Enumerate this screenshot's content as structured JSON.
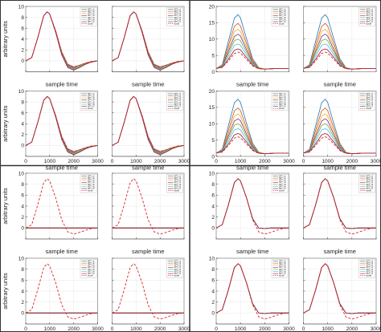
{
  "figure": {
    "divider_color": "#333333",
    "background": "#ffffff"
  },
  "series_colors": [
    "#1f77b4",
    "#d95319",
    "#edb120",
    "#7e2f8e",
    "#77ac30",
    "#4dbeee",
    "#a2142f",
    "#2b2b2b"
  ],
  "actual_color": "#d62728",
  "chart_data": [
    {
      "type": "line",
      "panel": "top-left",
      "xlabel": "sample time",
      "ylabel": "arbitrary units",
      "xlim": [
        0,
        3000
      ],
      "ylim": [
        -2,
        10
      ],
      "xticks": [
        0,
        1000,
        2000,
        3000
      ],
      "yticks": [
        0,
        2,
        4,
        6,
        8,
        10
      ],
      "subplots": 4,
      "grid": true,
      "legend": {
        "placement": "top-right",
        "entries": [
          "SPT_n1",
          "SPT_n2",
          "SPT_n3",
          "SPT_n4",
          "SPT_n5",
          "SPT_n6",
          "SPT_n7",
          "actual"
        ]
      },
      "x": [
        0,
        250,
        500,
        750,
        900,
        1000,
        1250,
        1500,
        1750,
        2000,
        2250,
        2500,
        2750,
        3000
      ],
      "series": [
        {
          "name": "SPT_n1",
          "values": [
            0,
            0.6,
            4.2,
            8.3,
            9.0,
            8.6,
            5.5,
            1.7,
            -0.6,
            -1.1,
            -0.8,
            -0.4,
            -0.1,
            0
          ]
        },
        {
          "name": "SPT_n2",
          "values": [
            0,
            0.6,
            4.2,
            8.3,
            9.0,
            8.6,
            5.5,
            1.6,
            -0.7,
            -1.2,
            -0.9,
            -0.4,
            -0.1,
            0
          ]
        },
        {
          "name": "SPT_n3",
          "values": [
            0,
            0.6,
            4.2,
            8.3,
            9.0,
            8.6,
            5.4,
            1.5,
            -0.8,
            -1.3,
            -0.9,
            -0.5,
            -0.1,
            0
          ]
        },
        {
          "name": "SPT_n4",
          "values": [
            0,
            0.6,
            4.2,
            8.3,
            9.0,
            8.6,
            5.4,
            1.4,
            -0.9,
            -1.4,
            -1.0,
            -0.5,
            -0.2,
            0
          ]
        },
        {
          "name": "SPT_n5",
          "values": [
            0,
            0.6,
            4.2,
            8.3,
            9.0,
            8.6,
            5.3,
            1.3,
            -1.0,
            -1.5,
            -1.0,
            -0.5,
            -0.2,
            0
          ]
        },
        {
          "name": "SPT_n6",
          "values": [
            0,
            0.6,
            4.2,
            8.3,
            9.0,
            8.6,
            5.3,
            1.2,
            -1.1,
            -1.6,
            -1.1,
            -0.6,
            -0.2,
            0
          ]
        },
        {
          "name": "SPT_n7",
          "values": [
            0,
            0.6,
            4.2,
            8.3,
            9.0,
            8.6,
            5.2,
            1.1,
            -1.2,
            -1.7,
            -1.2,
            -0.6,
            -0.2,
            0
          ]
        },
        {
          "name": "actual",
          "dashed": true,
          "values": [
            0,
            0.6,
            4.2,
            8.3,
            9.0,
            8.6,
            5.5,
            1.5,
            -0.7,
            -1.1,
            -0.8,
            -0.4,
            -0.1,
            0
          ]
        }
      ]
    },
    {
      "type": "line",
      "panel": "top-right",
      "xlabel": "sample time",
      "ylabel": "",
      "xlim": [
        0,
        3000
      ],
      "ylim": [
        0,
        20
      ],
      "xticks": [
        0,
        1000,
        2000,
        3000
      ],
      "yticks": [
        0,
        5,
        10,
        15,
        20
      ],
      "subplots": 4,
      "grid": true,
      "legend": {
        "placement": "top-right",
        "entries": [
          "SPT_n1",
          "SPT_n2",
          "SPT_n3",
          "SPT_n4",
          "SPT_n5",
          "SPT_n6",
          "SPT_n7",
          "actual"
        ]
      },
      "x": [
        0,
        250,
        500,
        750,
        900,
        1000,
        1250,
        1500,
        1750,
        2000,
        2250,
        2500,
        2750,
        3000
      ],
      "series": [
        {
          "name": "SPT_n1",
          "values": [
            1.0,
            2.1,
            9.3,
            16.4,
            17.5,
            16.5,
            10.1,
            4.0,
            1.3,
            0.8,
            0.9,
            1.0,
            1.0,
            1.0
          ]
        },
        {
          "name": "SPT_n2",
          "values": [
            1.0,
            1.9,
            7.9,
            13.9,
            14.8,
            14.0,
            8.7,
            3.5,
            1.2,
            0.8,
            0.9,
            1.0,
            1.0,
            1.0
          ]
        },
        {
          "name": "SPT_n3",
          "values": [
            1.0,
            1.8,
            7.0,
            12.3,
            13.0,
            12.3,
            7.7,
            3.2,
            1.2,
            0.8,
            0.9,
            1.0,
            1.0,
            1.0
          ]
        },
        {
          "name": "SPT_n4",
          "values": [
            1.0,
            1.7,
            6.2,
            10.8,
            11.5,
            10.9,
            6.8,
            2.9,
            1.1,
            0.8,
            0.9,
            1.0,
            1.0,
            1.0
          ]
        },
        {
          "name": "SPT_n5",
          "values": [
            1.0,
            1.6,
            5.4,
            9.5,
            10.0,
            9.5,
            6.0,
            2.6,
            1.1,
            0.8,
            0.9,
            1.0,
            1.0,
            1.0
          ]
        },
        {
          "name": "SPT_n6",
          "values": [
            1.0,
            1.5,
            4.6,
            8.1,
            8.5,
            8.1,
            5.2,
            2.3,
            1.0,
            0.8,
            0.9,
            1.0,
            1.0,
            1.0
          ]
        },
        {
          "name": "SPT_n7",
          "values": [
            1.0,
            1.4,
            3.8,
            6.6,
            7.0,
            6.7,
            4.4,
            2.0,
            1.0,
            0.8,
            0.9,
            1.0,
            1.0,
            1.0
          ]
        },
        {
          "name": "actual",
          "dashed": true,
          "values": [
            1.0,
            1.3,
            3.3,
            5.6,
            6.0,
            5.7,
            3.8,
            1.8,
            0.9,
            0.8,
            0.9,
            1.0,
            1.0,
            1.0
          ]
        }
      ]
    },
    {
      "type": "line",
      "panel": "bottom-left",
      "xlabel": "sample time",
      "ylabel": "arbitrary units",
      "xlim": [
        0,
        3000
      ],
      "ylim": [
        -2,
        10
      ],
      "xticks": [
        0,
        1000,
        2000,
        3000
      ],
      "yticks": [
        0,
        2,
        4,
        6,
        8,
        10
      ],
      "subplots": 4,
      "grid": true,
      "legend": {
        "placement": "top-right",
        "entries": [
          "SPT_n1",
          "SPT_n2",
          "SPT_n3",
          "SPT_n4",
          "SPT_n5",
          "SPT_n6",
          "SPT_n7",
          "actual"
        ]
      },
      "x": [
        0,
        250,
        500,
        750,
        900,
        1000,
        1250,
        1500,
        1750,
        2000,
        2250,
        2500,
        2750,
        3000
      ],
      "series": [
        {
          "name": "SPT_n1",
          "values": [
            0,
            0,
            0,
            0,
            0,
            0,
            0,
            0,
            0,
            0,
            0,
            0,
            0,
            0
          ]
        },
        {
          "name": "SPT_n2",
          "values": [
            0,
            0,
            0,
            0,
            0,
            0,
            0,
            0,
            0,
            0,
            0,
            0,
            0,
            0
          ]
        },
        {
          "name": "SPT_n3",
          "values": [
            0,
            0,
            0,
            0,
            0,
            0,
            0,
            0,
            0,
            0,
            0,
            0,
            0,
            0
          ]
        },
        {
          "name": "SPT_n4",
          "values": [
            0,
            0,
            0,
            0,
            0,
            0,
            0,
            0,
            0,
            0,
            0,
            0,
            0,
            0
          ]
        },
        {
          "name": "SPT_n5",
          "values": [
            0,
            0,
            0,
            0,
            0,
            0,
            0,
            0,
            0,
            0,
            0,
            0,
            0,
            0
          ]
        },
        {
          "name": "SPT_n6",
          "values": [
            0,
            0,
            0,
            0,
            0,
            0,
            0,
            0,
            0,
            0,
            0,
            0,
            0,
            0
          ]
        },
        {
          "name": "SPT_n7",
          "values": [
            0,
            0,
            0,
            0,
            0,
            0,
            0,
            0,
            0,
            0,
            0,
            0,
            0,
            0
          ]
        },
        {
          "name": "actual",
          "dashed": true,
          "values": [
            0,
            0.6,
            4.2,
            8.3,
            9.0,
            8.6,
            5.5,
            1.5,
            -0.7,
            -1.1,
            -0.8,
            -0.4,
            -0.1,
            0
          ]
        }
      ]
    },
    {
      "type": "line",
      "panel": "bottom-right",
      "xlabel": "sample time",
      "ylabel": "",
      "xlim": [
        0,
        3000
      ],
      "ylim": [
        -2,
        10
      ],
      "xticks": [
        0,
        1000,
        2000,
        3000
      ],
      "yticks": [
        0,
        2,
        4,
        6,
        8,
        10
      ],
      "subplots": 4,
      "grid": true,
      "legend": {
        "placement": "top-right",
        "entries": [
          "SPT_n1",
          "SPT_n2",
          "SPT_n3",
          "SPT_n4",
          "SPT_n5",
          "SPT_n6",
          "SPT_n7",
          "actual"
        ]
      },
      "x": [
        0,
        250,
        500,
        750,
        900,
        1000,
        1250,
        1500,
        1750,
        2000,
        2250,
        2500,
        2750,
        3000
      ],
      "series": [
        {
          "name": "SPT_n1",
          "values": [
            0,
            0.6,
            4.2,
            8.3,
            9.0,
            8.6,
            5.5,
            1.7,
            0.0,
            -0.1,
            0,
            0,
            0,
            0
          ]
        },
        {
          "name": "SPT_n2",
          "values": [
            0,
            0.6,
            4.2,
            8.3,
            9.0,
            8.6,
            5.5,
            1.7,
            0.0,
            -0.1,
            0,
            0,
            0,
            0
          ]
        },
        {
          "name": "SPT_n3",
          "values": [
            0,
            0.6,
            4.2,
            8.3,
            9.0,
            8.6,
            5.5,
            1.7,
            0.0,
            -0.1,
            0,
            0,
            0,
            0
          ]
        },
        {
          "name": "SPT_n4",
          "values": [
            0,
            0.6,
            4.2,
            8.3,
            9.0,
            8.6,
            5.5,
            1.7,
            0.0,
            -0.1,
            0,
            0,
            0,
            0
          ]
        },
        {
          "name": "SPT_n5",
          "values": [
            0,
            0.6,
            4.2,
            8.3,
            9.0,
            8.6,
            5.5,
            1.7,
            0.0,
            -0.1,
            0,
            0,
            0,
            0
          ]
        },
        {
          "name": "SPT_n6",
          "values": [
            0,
            0.6,
            4.2,
            8.3,
            9.0,
            8.6,
            5.5,
            1.7,
            0.0,
            -0.1,
            0,
            0,
            0,
            0
          ]
        },
        {
          "name": "SPT_n7",
          "values": [
            0,
            0.6,
            4.2,
            8.3,
            9.0,
            8.6,
            5.5,
            1.7,
            0.0,
            -0.1,
            0,
            0,
            0,
            0
          ]
        },
        {
          "name": "actual",
          "dashed": true,
          "values": [
            0,
            0.6,
            4.2,
            8.3,
            9.0,
            8.6,
            5.5,
            1.5,
            -0.7,
            -1.1,
            -0.8,
            -0.4,
            -0.1,
            0
          ]
        }
      ]
    }
  ]
}
